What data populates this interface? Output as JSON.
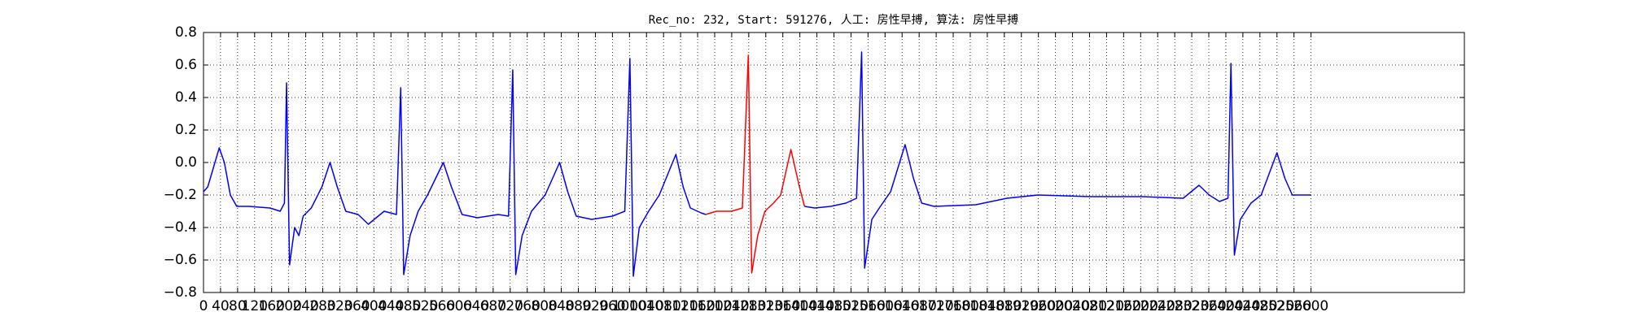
{
  "chart_data": {
    "type": "line",
    "title": "Rec_no: 232, Start: 591276, 人工: 房性早搏, 算法: 房性早搏",
    "x": [
      0,
      10,
      37,
      49,
      63,
      78,
      107,
      156,
      180,
      190,
      195,
      202,
      214,
      224,
      234,
      253,
      278,
      297,
      314,
      334,
      363,
      387,
      424,
      453,
      463,
      470,
      485,
      504,
      526,
      563,
      582,
      607,
      643,
      692,
      716,
      726,
      733,
      748,
      770,
      802,
      836,
      855,
      875,
      911,
      960,
      989,
      1001,
      1009,
      1023,
      1045,
      1070,
      1109,
      1126,
      1143,
      1168,
      1179,
      1204,
      1240,
      1265,
      1279,
      1287,
      1301,
      1318,
      1338,
      1355,
      1379,
      1399,
      1411,
      1435,
      1472,
      1508,
      1533,
      1545,
      1552,
      1569,
      1589,
      1613,
      1647,
      1667,
      1686,
      1715,
      1813,
      1886,
      1959,
      2081,
      2203,
      2300,
      2337,
      2361,
      2385,
      2405,
      2412,
      2420,
      2434,
      2459,
      2483,
      2520,
      2539,
      2556,
      2600
    ],
    "series": [
      {
        "color": "#0000ff",
        "values": [
          -0.18,
          -0.15,
          0.09,
          0.0,
          -0.2,
          -0.27,
          -0.27,
          -0.28,
          -0.3,
          -0.25,
          0.49,
          -0.63,
          -0.4,
          -0.45,
          -0.33,
          -0.28,
          -0.15,
          0.0,
          -0.15,
          -0.3,
          -0.32,
          -0.38,
          -0.3,
          -0.32,
          0.46,
          -0.69,
          -0.45,
          -0.3,
          -0.2,
          0.0,
          -0.15,
          -0.32,
          -0.34,
          -0.32,
          -0.33,
          0.57,
          -0.69,
          -0.45,
          -0.3,
          -0.2,
          0.0,
          -0.18,
          -0.33,
          -0.35,
          -0.33,
          -0.3,
          0.64,
          -0.7,
          -0.4,
          -0.3,
          -0.2,
          0.05,
          -0.15,
          -0.28,
          -0.31,
          -0.32,
          null,
          null,
          null,
          null,
          null,
          null,
          null,
          null,
          null,
          null,
          null,
          -0.27,
          -0.28,
          -0.27,
          -0.25,
          -0.22,
          0.68,
          -0.65,
          -0.35,
          -0.27,
          -0.18,
          0.11,
          -0.1,
          -0.25,
          -0.27,
          -0.26,
          -0.22,
          -0.2,
          -0.21,
          -0.21,
          -0.22,
          -0.14,
          -0.2,
          -0.24,
          -0.22,
          0.61,
          -0.57,
          -0.35,
          -0.25,
          -0.2,
          0.06,
          -0.1,
          -0.2,
          -0.2
        ]
      },
      {
        "color": "#ff0000",
        "values": [
          null,
          null,
          null,
          null,
          null,
          null,
          null,
          null,
          null,
          null,
          null,
          null,
          null,
          null,
          null,
          null,
          null,
          null,
          null,
          null,
          null,
          null,
          null,
          null,
          null,
          null,
          null,
          null,
          null,
          null,
          null,
          null,
          null,
          null,
          null,
          null,
          null,
          null,
          null,
          null,
          null,
          null,
          null,
          null,
          null,
          null,
          null,
          null,
          null,
          null,
          null,
          null,
          null,
          null,
          null,
          -0.32,
          -0.3,
          -0.3,
          -0.28,
          0.66,
          -0.68,
          -0.45,
          -0.3,
          -0.25,
          -0.2,
          0.08,
          -0.15,
          -0.27,
          null,
          null,
          null,
          null,
          null,
          null,
          null,
          null,
          null,
          null,
          null,
          null,
          null,
          null,
          null,
          null,
          null,
          null,
          null,
          null,
          null,
          null,
          null,
          null,
          null,
          null,
          null,
          null,
          null,
          null,
          null,
          null
        ]
      }
    ],
    "xlim": [
      0,
      2960
    ],
    "xticks": [
      0,
      40,
      80,
      120,
      160,
      200,
      240,
      280,
      320,
      360,
      400,
      440,
      480,
      520,
      560,
      600,
      640,
      680,
      720,
      760,
      800,
      840,
      880,
      920,
      960,
      1000,
      1040,
      1080,
      1120,
      1160,
      1200,
      1240,
      1280,
      1320,
      1360,
      1400,
      1440,
      1480,
      1520,
      1560,
      1600,
      1640,
      1680,
      1720,
      1760,
      1800,
      1840,
      1880,
      1920,
      1960,
      2000,
      2040,
      2080,
      2120,
      2160,
      2200,
      2240,
      2280,
      2320,
      2360,
      2400,
      2440,
      2480,
      2520,
      2560,
      2600
    ],
    "ylim": [
      -0.8,
      0.8
    ],
    "yticks": [
      {
        "value": -0.8,
        "label": "−0.8"
      },
      {
        "value": -0.6,
        "label": "−0.6"
      },
      {
        "value": -0.4,
        "label": "−0.4"
      },
      {
        "value": -0.2,
        "label": "−0.2"
      },
      {
        "value": 0,
        "label": "0.0"
      },
      0.2,
      0.4,
      0.6,
      0.8
    ],
    "grid": true
  }
}
